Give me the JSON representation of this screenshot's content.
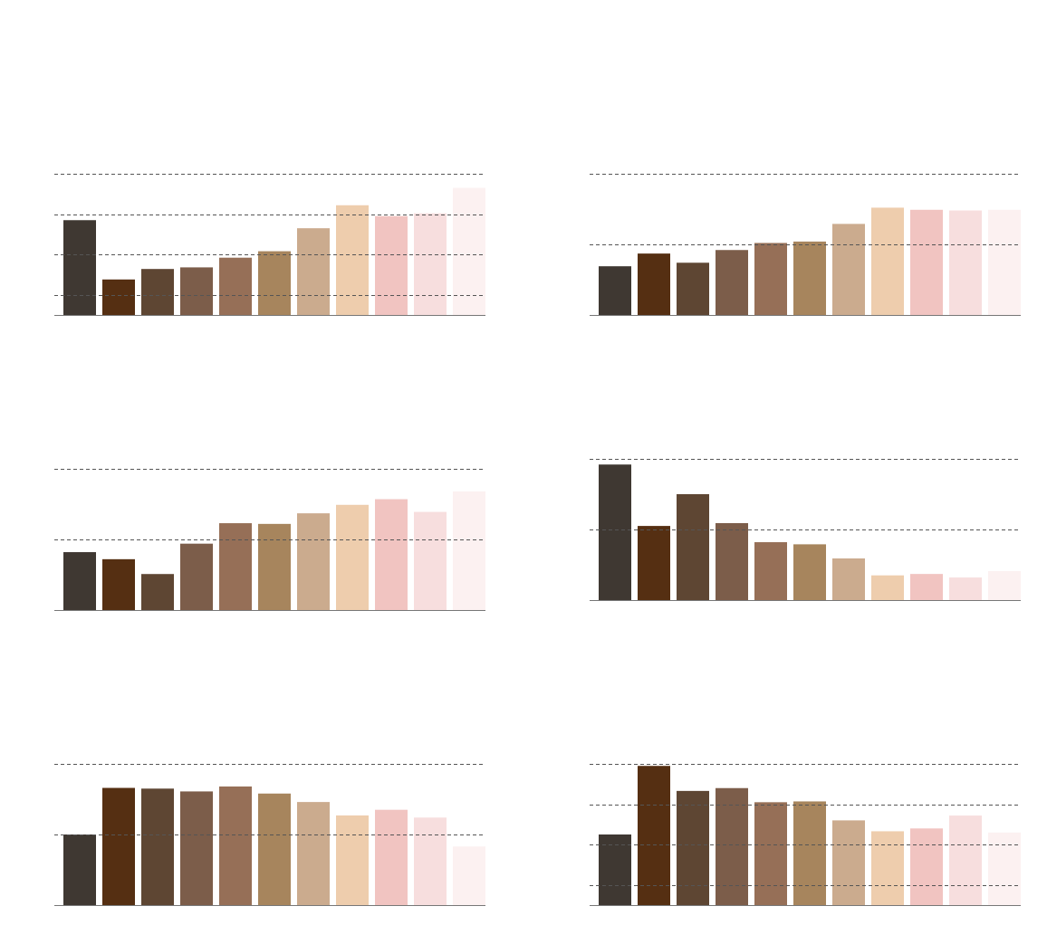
{
  "palette": [
    "#3f3832",
    "#552f12",
    "#5e4633",
    "#7c5d4a",
    "#966f57",
    "#a7855d",
    "#cbab8e",
    "#eecdad",
    "#f1c4c1",
    "#f7dede",
    "#fcf1f1"
  ],
  "colors": {
    "grid": "#555555",
    "axis": "#777777",
    "background": "#ffffff"
  },
  "chart_data": [
    {
      "type": "bar",
      "grid": true,
      "ylim": [
        0,
        3.5
      ],
      "gridlines": [
        0.5,
        1.5,
        2.5,
        3.5
      ],
      "values": [
        2.35,
        0.88,
        1.14,
        1.18,
        1.42,
        1.58,
        2.15,
        2.72,
        2.45,
        2.52,
        3.15
      ]
    },
    {
      "type": "bar",
      "grid": true,
      "ylim": [
        0,
        2
      ],
      "gridlines": [
        1,
        2
      ],
      "values": [
        0.69,
        0.87,
        0.74,
        0.92,
        1.02,
        1.04,
        1.29,
        1.52,
        1.49,
        1.48,
        1.49
      ]
    },
    {
      "type": "bar",
      "grid": true,
      "ylim": [
        0,
        2
      ],
      "gridlines": [
        1,
        2
      ],
      "values": [
        0.82,
        0.72,
        0.51,
        0.94,
        1.23,
        1.22,
        1.37,
        1.49,
        1.57,
        1.39,
        1.68
      ]
    },
    {
      "type": "bar",
      "grid": true,
      "ylim": [
        0,
        2
      ],
      "gridlines": [
        1,
        2
      ],
      "values": [
        1.92,
        1.05,
        1.5,
        1.09,
        0.82,
        0.79,
        0.59,
        0.35,
        0.37,
        0.32,
        0.41
      ]
    },
    {
      "type": "bar",
      "grid": true,
      "ylim": [
        0,
        2
      ],
      "gridlines": [
        1,
        2
      ],
      "values": [
        1.0,
        1.66,
        1.65,
        1.61,
        1.68,
        1.58,
        1.46,
        1.27,
        1.35,
        1.24,
        0.83
      ]
    },
    {
      "type": "bar",
      "grid": true,
      "ylim": [
        0,
        3.5
      ],
      "gridlines": [
        0.5,
        1.5,
        2.5,
        3.5
      ],
      "values": [
        1.75,
        3.45,
        2.83,
        2.9,
        2.55,
        2.57,
        2.1,
        1.83,
        1.9,
        2.22,
        1.8
      ]
    }
  ]
}
